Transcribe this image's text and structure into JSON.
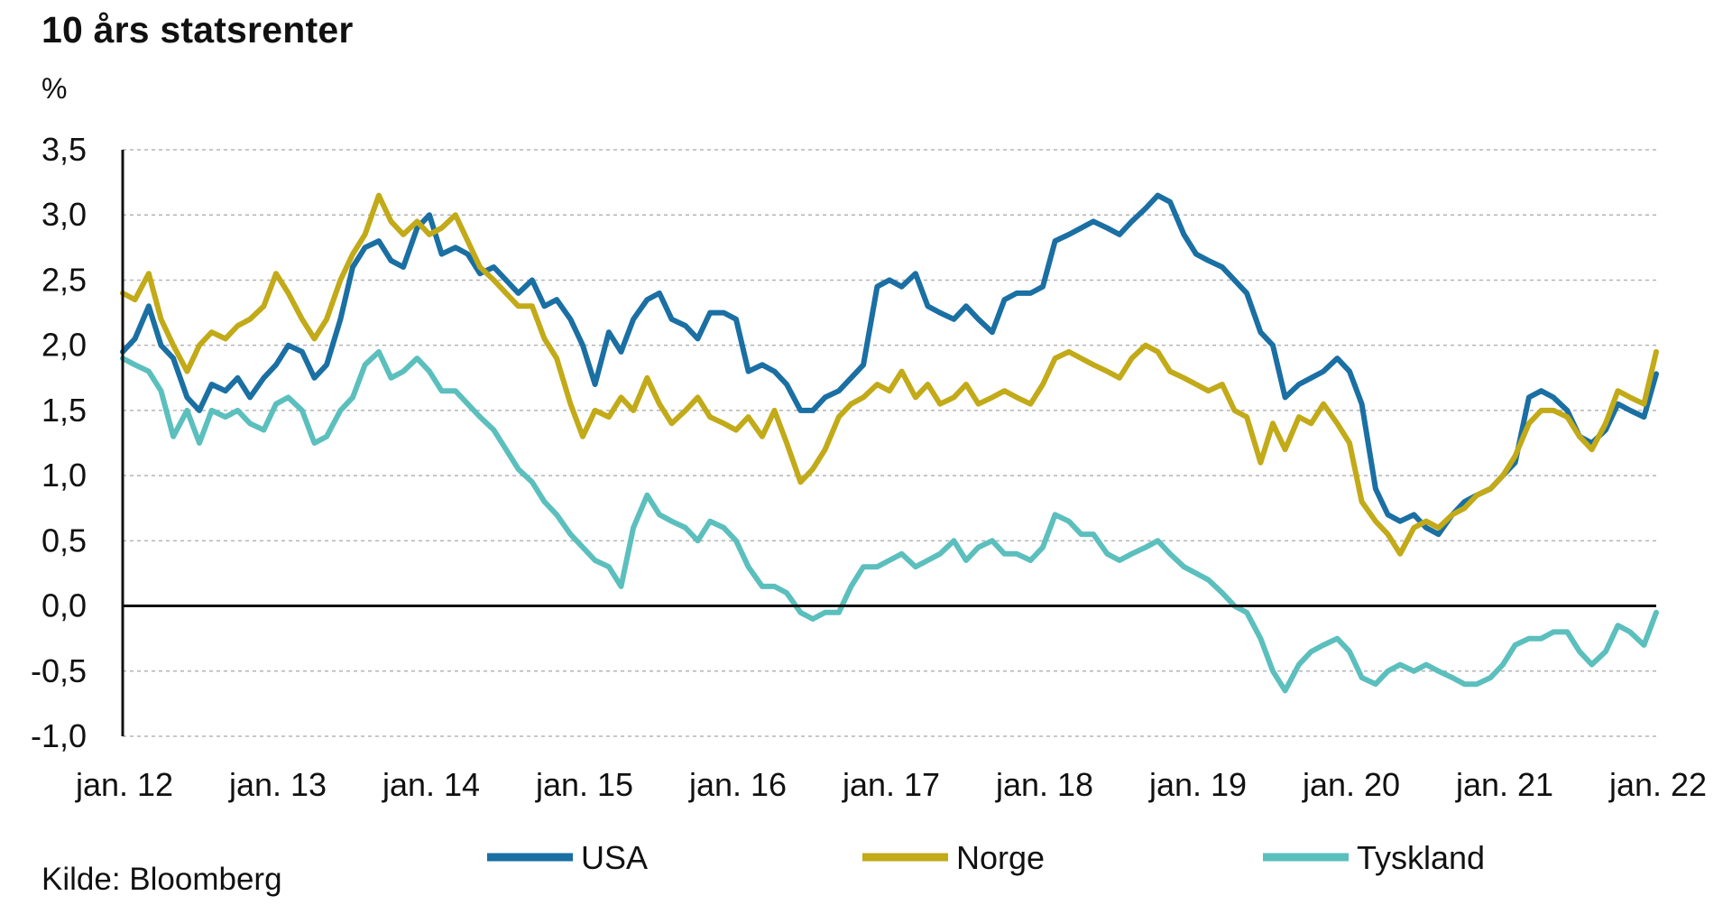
{
  "chart_data": {
    "type": "line",
    "title": "10 års statsrenter",
    "ylabel": "%",
    "source": "Kilde: Bloomberg",
    "ylim": [
      -1.0,
      3.5
    ],
    "yticks": [
      3.5,
      3.0,
      2.5,
      2.0,
      1.5,
      1.0,
      0.5,
      0.0,
      -0.5,
      -1.0
    ],
    "ytick_labels": [
      "3,5",
      "3,0",
      "2,5",
      "2,0",
      "1,5",
      "1,0",
      "0,5",
      "0,0",
      "-0,5",
      "-1,0"
    ],
    "xlim": [
      2012.0,
      2022.0
    ],
    "xticks": [
      2012,
      2013,
      2014,
      2015,
      2016,
      2017,
      2018,
      2019,
      2020,
      2021,
      2022
    ],
    "xtick_labels": [
      "jan. 12",
      "jan. 13",
      "jan. 14",
      "jan. 15",
      "jan. 16",
      "jan. 17",
      "jan. 18",
      "jan. 19",
      "jan. 20",
      "jan. 21",
      "jan. 22"
    ],
    "grid": "horizontal-dashed",
    "legend_position": "bottom",
    "series": [
      {
        "name": "USA",
        "color": "#1a6fa3",
        "x": [
          2012.0,
          2012.08,
          2012.17,
          2012.25,
          2012.33,
          2012.42,
          2012.5,
          2012.58,
          2012.67,
          2012.75,
          2012.83,
          2012.92,
          2013.0,
          2013.08,
          2013.17,
          2013.25,
          2013.33,
          2013.42,
          2013.5,
          2013.58,
          2013.67,
          2013.75,
          2013.83,
          2013.92,
          2014.0,
          2014.08,
          2014.17,
          2014.25,
          2014.33,
          2014.42,
          2014.5,
          2014.58,
          2014.67,
          2014.75,
          2014.83,
          2014.92,
          2015.0,
          2015.08,
          2015.17,
          2015.25,
          2015.33,
          2015.42,
          2015.5,
          2015.58,
          2015.67,
          2015.75,
          2015.83,
          2015.92,
          2016.0,
          2016.08,
          2016.17,
          2016.25,
          2016.33,
          2016.42,
          2016.5,
          2016.58,
          2016.67,
          2016.75,
          2016.83,
          2016.92,
          2017.0,
          2017.08,
          2017.17,
          2017.25,
          2017.33,
          2017.42,
          2017.5,
          2017.58,
          2017.67,
          2017.75,
          2017.83,
          2017.92,
          2018.0,
          2018.08,
          2018.17,
          2018.25,
          2018.33,
          2018.42,
          2018.5,
          2018.58,
          2018.67,
          2018.75,
          2018.83,
          2018.92,
          2019.0,
          2019.08,
          2019.17,
          2019.25,
          2019.33,
          2019.42,
          2019.5,
          2019.58,
          2019.67,
          2019.75,
          2019.83,
          2019.92,
          2020.0,
          2020.08,
          2020.17,
          2020.25,
          2020.33,
          2020.42,
          2020.5,
          2020.58,
          2020.67,
          2020.75,
          2020.83,
          2020.92,
          2021.0,
          2021.08,
          2021.17,
          2021.25,
          2021.33,
          2021.42,
          2021.5,
          2021.58,
          2021.67,
          2021.75,
          2021.83,
          2021.92,
          2022.0
        ],
        "values": [
          1.95,
          2.05,
          2.3,
          2.0,
          1.9,
          1.6,
          1.5,
          1.7,
          1.65,
          1.75,
          1.6,
          1.75,
          1.85,
          2.0,
          1.95,
          1.75,
          1.85,
          2.2,
          2.6,
          2.75,
          2.8,
          2.65,
          2.6,
          2.9,
          3.0,
          2.7,
          2.75,
          2.7,
          2.55,
          2.6,
          2.5,
          2.4,
          2.5,
          2.3,
          2.35,
          2.2,
          2.0,
          1.7,
          2.1,
          1.95,
          2.2,
          2.35,
          2.4,
          2.2,
          2.15,
          2.05,
          2.25,
          2.25,
          2.2,
          1.8,
          1.85,
          1.8,
          1.7,
          1.5,
          1.5,
          1.6,
          1.65,
          1.75,
          1.85,
          2.45,
          2.5,
          2.45,
          2.55,
          2.3,
          2.25,
          2.2,
          2.3,
          2.2,
          2.1,
          2.35,
          2.4,
          2.4,
          2.45,
          2.8,
          2.85,
          2.9,
          2.95,
          2.9,
          2.85,
          2.95,
          3.05,
          3.15,
          3.1,
          2.85,
          2.7,
          2.65,
          2.6,
          2.5,
          2.4,
          2.1,
          2.0,
          1.6,
          1.7,
          1.75,
          1.8,
          1.9,
          1.8,
          1.55,
          0.9,
          0.7,
          0.65,
          0.7,
          0.6,
          0.55,
          0.7,
          0.8,
          0.85,
          0.9,
          1.0,
          1.1,
          1.6,
          1.65,
          1.6,
          1.5,
          1.3,
          1.25,
          1.35,
          1.55,
          1.5,
          1.45,
          1.78
        ]
      },
      {
        "name": "Norge",
        "color": "#c2aa18",
        "x": [
          2012.0,
          2012.08,
          2012.17,
          2012.25,
          2012.33,
          2012.42,
          2012.5,
          2012.58,
          2012.67,
          2012.75,
          2012.83,
          2012.92,
          2013.0,
          2013.08,
          2013.17,
          2013.25,
          2013.33,
          2013.42,
          2013.5,
          2013.58,
          2013.67,
          2013.75,
          2013.83,
          2013.92,
          2014.0,
          2014.08,
          2014.17,
          2014.25,
          2014.33,
          2014.42,
          2014.5,
          2014.58,
          2014.67,
          2014.75,
          2014.83,
          2014.92,
          2015.0,
          2015.08,
          2015.17,
          2015.25,
          2015.33,
          2015.42,
          2015.5,
          2015.58,
          2015.67,
          2015.75,
          2015.83,
          2015.92,
          2016.0,
          2016.08,
          2016.17,
          2016.25,
          2016.33,
          2016.42,
          2016.5,
          2016.58,
          2016.67,
          2016.75,
          2016.83,
          2016.92,
          2017.0,
          2017.08,
          2017.17,
          2017.25,
          2017.33,
          2017.42,
          2017.5,
          2017.58,
          2017.67,
          2017.75,
          2017.83,
          2017.92,
          2018.0,
          2018.08,
          2018.17,
          2018.25,
          2018.33,
          2018.42,
          2018.5,
          2018.58,
          2018.67,
          2018.75,
          2018.83,
          2018.92,
          2019.0,
          2019.08,
          2019.17,
          2019.25,
          2019.33,
          2019.42,
          2019.5,
          2019.58,
          2019.67,
          2019.75,
          2019.83,
          2019.92,
          2020.0,
          2020.08,
          2020.17,
          2020.25,
          2020.33,
          2020.42,
          2020.5,
          2020.58,
          2020.67,
          2020.75,
          2020.83,
          2020.92,
          2021.0,
          2021.08,
          2021.17,
          2021.25,
          2021.33,
          2021.42,
          2021.5,
          2021.58,
          2021.67,
          2021.75,
          2021.83,
          2021.92,
          2022.0
        ],
        "values": [
          2.4,
          2.35,
          2.55,
          2.2,
          2.0,
          1.8,
          2.0,
          2.1,
          2.05,
          2.15,
          2.2,
          2.3,
          2.55,
          2.4,
          2.2,
          2.05,
          2.2,
          2.5,
          2.7,
          2.85,
          3.15,
          2.95,
          2.85,
          2.95,
          2.85,
          2.9,
          3.0,
          2.8,
          2.6,
          2.5,
          2.4,
          2.3,
          2.3,
          2.05,
          1.9,
          1.55,
          1.3,
          1.5,
          1.45,
          1.6,
          1.5,
          1.75,
          1.55,
          1.4,
          1.5,
          1.6,
          1.45,
          1.4,
          1.35,
          1.45,
          1.3,
          1.5,
          1.25,
          0.95,
          1.05,
          1.2,
          1.45,
          1.55,
          1.6,
          1.7,
          1.65,
          1.8,
          1.6,
          1.7,
          1.55,
          1.6,
          1.7,
          1.55,
          1.6,
          1.65,
          1.6,
          1.55,
          1.7,
          1.9,
          1.95,
          1.9,
          1.85,
          1.8,
          1.75,
          1.9,
          2.0,
          1.95,
          1.8,
          1.75,
          1.7,
          1.65,
          1.7,
          1.5,
          1.45,
          1.1,
          1.4,
          1.2,
          1.45,
          1.4,
          1.55,
          1.4,
          1.25,
          0.8,
          0.65,
          0.55,
          0.4,
          0.6,
          0.65,
          0.6,
          0.7,
          0.75,
          0.85,
          0.9,
          1.0,
          1.15,
          1.4,
          1.5,
          1.5,
          1.45,
          1.3,
          1.2,
          1.4,
          1.65,
          1.6,
          1.55,
          1.95
        ]
      },
      {
        "name": "Tyskland",
        "color": "#5bbfbd",
        "x": [
          2012.0,
          2012.08,
          2012.17,
          2012.25,
          2012.33,
          2012.42,
          2012.5,
          2012.58,
          2012.67,
          2012.75,
          2012.83,
          2012.92,
          2013.0,
          2013.08,
          2013.17,
          2013.25,
          2013.33,
          2013.42,
          2013.5,
          2013.58,
          2013.67,
          2013.75,
          2013.83,
          2013.92,
          2014.0,
          2014.08,
          2014.17,
          2014.25,
          2014.33,
          2014.42,
          2014.5,
          2014.58,
          2014.67,
          2014.75,
          2014.83,
          2014.92,
          2015.0,
          2015.08,
          2015.17,
          2015.25,
          2015.33,
          2015.42,
          2015.5,
          2015.58,
          2015.67,
          2015.75,
          2015.83,
          2015.92,
          2016.0,
          2016.08,
          2016.17,
          2016.25,
          2016.33,
          2016.42,
          2016.5,
          2016.58,
          2016.67,
          2016.75,
          2016.83,
          2016.92,
          2017.0,
          2017.08,
          2017.17,
          2017.25,
          2017.33,
          2017.42,
          2017.5,
          2017.58,
          2017.67,
          2017.75,
          2017.83,
          2017.92,
          2018.0,
          2018.08,
          2018.17,
          2018.25,
          2018.33,
          2018.42,
          2018.5,
          2018.58,
          2018.67,
          2018.75,
          2018.83,
          2018.92,
          2019.0,
          2019.08,
          2019.17,
          2019.25,
          2019.33,
          2019.42,
          2019.5,
          2019.58,
          2019.67,
          2019.75,
          2019.83,
          2019.92,
          2020.0,
          2020.08,
          2020.17,
          2020.25,
          2020.33,
          2020.42,
          2020.5,
          2020.58,
          2020.67,
          2020.75,
          2020.83,
          2020.92,
          2021.0,
          2021.08,
          2021.17,
          2021.25,
          2021.33,
          2021.42,
          2021.5,
          2021.58,
          2021.67,
          2021.75,
          2021.83,
          2021.92,
          2022.0
        ],
        "values": [
          1.9,
          1.85,
          1.8,
          1.65,
          1.3,
          1.5,
          1.25,
          1.5,
          1.45,
          1.5,
          1.4,
          1.35,
          1.55,
          1.6,
          1.5,
          1.25,
          1.3,
          1.5,
          1.6,
          1.85,
          1.95,
          1.75,
          1.8,
          1.9,
          1.8,
          1.65,
          1.65,
          1.55,
          1.45,
          1.35,
          1.2,
          1.05,
          0.95,
          0.8,
          0.7,
          0.55,
          0.45,
          0.35,
          0.3,
          0.15,
          0.6,
          0.85,
          0.7,
          0.65,
          0.6,
          0.5,
          0.65,
          0.6,
          0.5,
          0.3,
          0.15,
          0.15,
          0.1,
          -0.05,
          -0.1,
          -0.05,
          -0.05,
          0.15,
          0.3,
          0.3,
          0.35,
          0.4,
          0.3,
          0.35,
          0.4,
          0.5,
          0.35,
          0.45,
          0.5,
          0.4,
          0.4,
          0.35,
          0.45,
          0.7,
          0.65,
          0.55,
          0.55,
          0.4,
          0.35,
          0.4,
          0.45,
          0.5,
          0.4,
          0.3,
          0.25,
          0.2,
          0.1,
          0.0,
          -0.05,
          -0.25,
          -0.5,
          -0.65,
          -0.45,
          -0.35,
          -0.3,
          -0.25,
          -0.35,
          -0.55,
          -0.6,
          -0.5,
          -0.45,
          -0.5,
          -0.45,
          -0.5,
          -0.55,
          -0.6,
          -0.6,
          -0.55,
          -0.45,
          -0.3,
          -0.25,
          -0.25,
          -0.2,
          -0.2,
          -0.35,
          -0.45,
          -0.35,
          -0.15,
          -0.2,
          -0.3,
          -0.05
        ]
      }
    ]
  }
}
